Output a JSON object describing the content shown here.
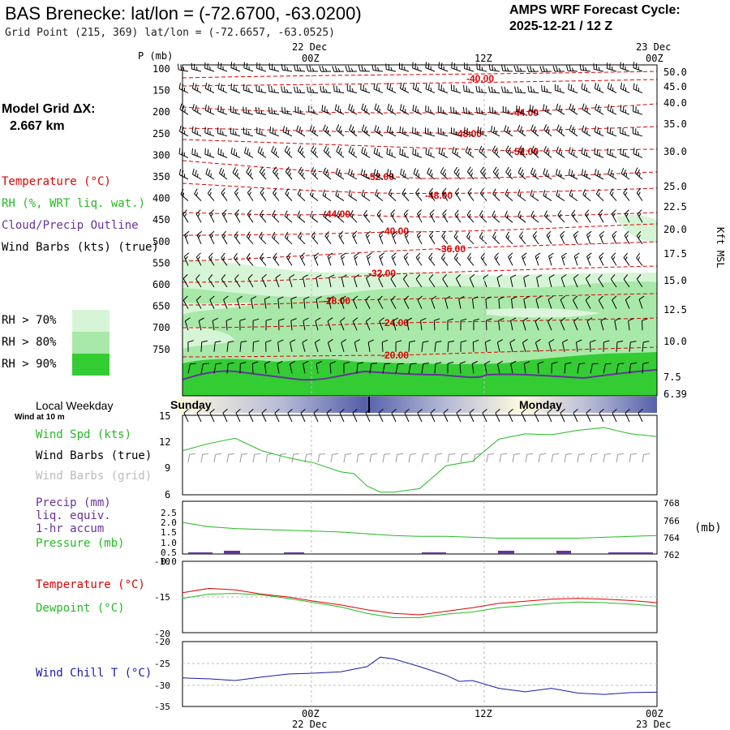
{
  "header": {
    "title": "BAS Brenecke:  lat/lon = (-72.6700, -63.0200)",
    "grid_point": "Grid Point (215, 369) lat/lon = (-72.6657, -63.0525)",
    "cycle_label": "AMPS WRF Forecast Cycle:",
    "cycle_value": "2025-12-21 / 12  Z"
  },
  "left_panel": {
    "model_grid_label": "Model Grid ΔX:",
    "model_grid_value": "2.667 km",
    "legend_temperature": "Temperature (°C)",
    "legend_rh": "RH (%, WRT liq. wat.)",
    "legend_cloud": "Cloud/Precip Outline",
    "legend_wind": "Wind Barbs (kts) (true)",
    "rh70": "RH > 70%",
    "rh80": "RH > 80%",
    "rh90": "RH > 90%"
  },
  "time_axis": {
    "top_labels": [
      {
        "day": "22 Dec",
        "hour": "00Z"
      },
      {
        "day": "",
        "hour": "12Z"
      },
      {
        "day": "23 Dec",
        "hour": "00Z"
      }
    ],
    "bottom_labels": [
      {
        "hour": "00Z",
        "day": "22 Dec"
      },
      {
        "hour": "12Z",
        "day": ""
      },
      {
        "hour": "00Z",
        "day": "23 Dec"
      }
    ]
  },
  "colors": {
    "temperature": "#e00000",
    "rh70": "#d6f5d6",
    "rh80": "#a8e8a8",
    "rh90": "#33cc33",
    "cloud": "#663399",
    "wind_speed": "#22bb22",
    "pressure": "#22bb22",
    "dewpoint": "#22bb22",
    "wind_chill": "#1a1aaa",
    "precip": "#663399",
    "day_band": "#5560aa"
  },
  "weekday": {
    "label": "Local Weekday",
    "wind_note": "Wind at 10 m",
    "days": [
      "Sunday",
      "Monday"
    ]
  },
  "chart_data": [
    {
      "type": "contour",
      "name": "time-height cross section",
      "title": "",
      "ylabel": "P (mb)",
      "y_ticks": [
        100,
        150,
        200,
        250,
        300,
        350,
        400,
        450,
        500,
        550,
        600,
        650,
        700,
        750
      ],
      "right_label": "Kft MSL",
      "right_ticks": [
        "50.0",
        "45.0",
        "40.0",
        "35.0",
        "30.0",
        "25.0",
        "22.5",
        "20.0",
        "17.5",
        "15.0",
        "12.5",
        "10.0",
        "7.5",
        "6.39"
      ],
      "temperature_labels": [
        "-40.00",
        "-44.00",
        "-48.00",
        "-52.00",
        "-52.00",
        "-48.00",
        "-44.00",
        "-40.00",
        "-36.00",
        "-32.00",
        "-28.00",
        "-24.00",
        "-20.00"
      ]
    },
    {
      "type": "line",
      "name": "wind speed",
      "title": "",
      "labels": [
        "Wind Spd (kts)",
        "Wind Barbs (true)",
        "Wind Barbs (grid)"
      ],
      "ylim": [
        6,
        15
      ],
      "y_ticks": [
        "15",
        "12",
        "9",
        "6"
      ],
      "x": [
        -12,
        -10,
        -8,
        -6,
        -4,
        -2,
        0,
        1,
        2,
        3,
        4,
        5,
        6,
        8,
        10,
        12,
        14,
        16,
        18,
        20,
        22,
        24
      ],
      "values": [
        11,
        11.8,
        12.4,
        11,
        10.2,
        9.6,
        8.6,
        8.4,
        7.0,
        6.3,
        6.3,
        6.5,
        6.7,
        9.3,
        9.8,
        12.3,
        12.9,
        12.8,
        13.3,
        13.6,
        12.9,
        12.6
      ]
    },
    {
      "type": "line",
      "name": "precip and pressure",
      "title": "",
      "labels": [
        "Precip (mm)",
        "liq. equiv.",
        "1-hr accum",
        "Pressure (mb)"
      ],
      "left_ticks": [
        "2.5",
        "2.0",
        "1.5",
        "1.0",
        "0.5",
        "0.0"
      ],
      "right_ticks": [
        "768",
        "766",
        "764",
        "762"
      ],
      "right_unit": "(mb)",
      "ylim": [
        762,
        768
      ],
      "x": [
        -12,
        -10,
        -8,
        -6,
        -4,
        -2,
        0,
        2,
        4,
        6,
        8,
        10,
        12,
        14,
        16,
        18,
        20,
        22,
        24
      ],
      "values": [
        765.6,
        765.1,
        764.9,
        764.8,
        764.7,
        764.6,
        764.5,
        764.3,
        764.1,
        764.0,
        764.0,
        763.9,
        763.8,
        763.8,
        763.8,
        763.8,
        763.9,
        764.0,
        764.1
      ]
    },
    {
      "type": "line",
      "name": "temperature and dewpoint",
      "title": "",
      "labels": [
        "Temperature (°C)",
        "Dewpoint (°C)"
      ],
      "ylim": [
        -20,
        -10
      ],
      "y_ticks": [
        "-10",
        "-15",
        "-20"
      ],
      "x": [
        -12,
        -10,
        -8,
        -6,
        -4,
        -2,
        0,
        2,
        4,
        6,
        8,
        10,
        12,
        14,
        16,
        18,
        20,
        22,
        24
      ],
      "series": [
        {
          "name": "Temperature",
          "values": [
            -14.4,
            -13.8,
            -14.0,
            -14.6,
            -15.0,
            -15.6,
            -16.1,
            -16.8,
            -17.3,
            -17.5,
            -17.0,
            -16.5,
            -15.9,
            -15.6,
            -15.3,
            -15.2,
            -15.3,
            -15.5,
            -15.8
          ]
        },
        {
          "name": "Dewpoint",
          "values": [
            -15.2,
            -14.6,
            -14.5,
            -14.7,
            -15.2,
            -15.8,
            -16.4,
            -17.3,
            -17.9,
            -17.9,
            -17.4,
            -17.1,
            -16.5,
            -16.2,
            -15.9,
            -15.7,
            -15.8,
            -16.0,
            -16.3
          ]
        }
      ]
    },
    {
      "type": "line",
      "name": "wind chill",
      "title": "",
      "labels": [
        "Wind Chill T (°C)"
      ],
      "ylim": [
        -35,
        -20
      ],
      "y_ticks": [
        "-20",
        "-25",
        "-30",
        "-35"
      ],
      "x": [
        -12,
        -10,
        -8,
        -6,
        -4,
        -2,
        0,
        2,
        3,
        4,
        6,
        8,
        9,
        10,
        12,
        14,
        16,
        18,
        20,
        22,
        24
      ],
      "values": [
        -28.4,
        -28.6,
        -29.0,
        -28.2,
        -27.5,
        -27.3,
        -27.0,
        -25.8,
        -23.6,
        -24.0,
        -25.8,
        -27.8,
        -29.2,
        -29.0,
        -30.8,
        -31.6,
        -30.8,
        -31.9,
        -32.2,
        -31.8,
        -31.7
      ]
    }
  ]
}
